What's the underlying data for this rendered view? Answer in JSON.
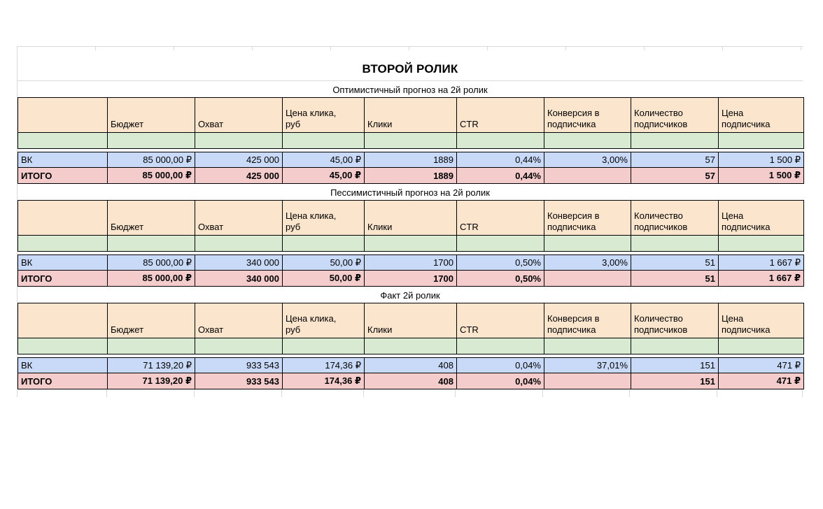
{
  "title": "ВТОРОЙ РОЛИК",
  "columns": [
    "",
    "Бюджет",
    "Охват",
    "Цена клика,\nруб",
    "Клики",
    "CTR",
    "Конверсия в\nподписчика",
    "Количество\nподписчиков",
    "Цена\nподписчика"
  ],
  "tables": [
    {
      "caption": "Оптимистичный прогноз на 2й ролик",
      "rows": [
        {
          "label": "ВК",
          "cells": [
            "ВК",
            "85 000,00 ₽",
            "425 000",
            "45,00 ₽",
            "1889",
            "0,44%",
            "3,00%",
            "57",
            "1 500 ₽"
          ]
        },
        {
          "label": "ИТОГО",
          "cells": [
            "ИТОГО",
            "85 000,00 ₽",
            "425 000",
            "45,00 ₽",
            "1889",
            "0,44%",
            "",
            "57",
            "1 500 ₽"
          ]
        }
      ]
    },
    {
      "caption": "Пессимистичный прогноз на 2й ролик",
      "rows": [
        {
          "label": "ВК",
          "cells": [
            "ВК",
            "85 000,00 ₽",
            "340 000",
            "50,00 ₽",
            "1700",
            "0,50%",
            "3,00%",
            "51",
            "1 667 ₽"
          ]
        },
        {
          "label": "ИТОГО",
          "cells": [
            "ИТОГО",
            "85 000,00 ₽",
            "340 000",
            "50,00 ₽",
            "1700",
            "0,50%",
            "",
            "51",
            "1 667 ₽"
          ]
        }
      ]
    },
    {
      "caption": "Факт 2й ролик",
      "rows": [
        {
          "label": "ВК",
          "cells": [
            "ВК",
            "71 139,20 ₽",
            "933 543",
            "174,36 ₽",
            "408",
            "0,04%",
            "37,01%",
            "151",
            "471 ₽"
          ]
        },
        {
          "label": "ИТОГО",
          "cells": [
            "ИТОГО",
            "71 139,20 ₽",
            "933 543",
            "174,36 ₽",
            "408",
            "0,04%",
            "",
            "151",
            "471 ₽"
          ]
        }
      ]
    }
  ],
  "colors": {
    "header_bg": "#fce5cd",
    "empty_row_bg": "#d9ead3",
    "vk_row_bg": "#c9daf8",
    "total_row_bg": "#f4cccc",
    "cell_border": "#000000",
    "gridline": "#d9d9d9"
  }
}
